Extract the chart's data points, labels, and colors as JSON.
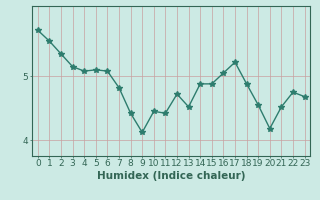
{
  "x": [
    0,
    1,
    2,
    3,
    4,
    5,
    6,
    7,
    8,
    9,
    10,
    11,
    12,
    13,
    14,
    15,
    16,
    17,
    18,
    19,
    20,
    21,
    22,
    23
  ],
  "y": [
    5.72,
    5.55,
    5.35,
    5.15,
    5.08,
    5.1,
    5.08,
    4.82,
    4.42,
    4.12,
    4.45,
    4.42,
    4.72,
    4.52,
    4.88,
    4.88,
    5.05,
    5.22,
    4.88,
    4.55,
    4.18,
    4.52,
    4.75,
    4.68
  ],
  "line_color": "#2e7d6e",
  "marker": "*",
  "marker_size": 4,
  "bg_color": "#cceae4",
  "grid_color": "#c8a0a0",
  "axis_color": "#336655",
  "xlabel": "Humidex (Indice chaleur)",
  "ylim": [
    3.75,
    6.1
  ],
  "yticks": [
    4,
    5
  ],
  "xticks": [
    0,
    1,
    2,
    3,
    4,
    5,
    6,
    7,
    8,
    9,
    10,
    11,
    12,
    13,
    14,
    15,
    16,
    17,
    18,
    19,
    20,
    21,
    22,
    23
  ],
  "line_width": 1.0,
  "font_size": 6.5,
  "xlabel_fontsize": 7.5
}
